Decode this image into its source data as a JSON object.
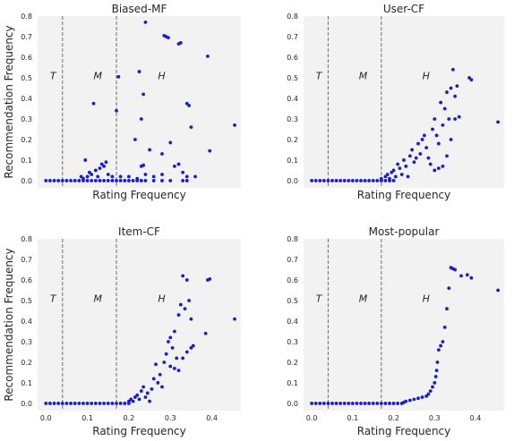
{
  "chart_data": [
    {
      "type": "scatter",
      "title": "Biased-MF",
      "xlabel": "Rating Frequency",
      "ylabel": "Recommendation Frequency",
      "xlim": [
        -0.02,
        0.47
      ],
      "ylim": [
        -0.035,
        0.8
      ],
      "yticks": [
        "0.0",
        "0.1",
        "0.2",
        "0.3",
        "0.4",
        "0.5",
        "0.6",
        "0.7",
        "0.8"
      ],
      "xticks": [],
      "zone_labels": [
        "T",
        "M",
        "H"
      ],
      "zone_lines": [
        0.04,
        0.17
      ],
      "color": "#1a1ad9",
      "points": [
        [
          0.0,
          0.0
        ],
        [
          0.01,
          0.0
        ],
        [
          0.02,
          0.0
        ],
        [
          0.03,
          0.0
        ],
        [
          0.04,
          0.0
        ],
        [
          0.05,
          0.0
        ],
        [
          0.06,
          0.0
        ],
        [
          0.07,
          0.0
        ],
        [
          0.08,
          0.0
        ],
        [
          0.09,
          0.0
        ],
        [
          0.1,
          0.0
        ],
        [
          0.11,
          0.0
        ],
        [
          0.12,
          0.0
        ],
        [
          0.13,
          0.0
        ],
        [
          0.14,
          0.0
        ],
        [
          0.15,
          0.0
        ],
        [
          0.16,
          0.0
        ],
        [
          0.17,
          0.0
        ],
        [
          0.18,
          0.0
        ],
        [
          0.19,
          0.0
        ],
        [
          0.2,
          0.0
        ],
        [
          0.21,
          0.0
        ],
        [
          0.22,
          0.0
        ],
        [
          0.23,
          0.0
        ],
        [
          0.24,
          0.0
        ],
        [
          0.26,
          0.0
        ],
        [
          0.28,
          0.0
        ],
        [
          0.3,
          0.0
        ],
        [
          0.33,
          0.0
        ],
        [
          0.34,
          0.0
        ],
        [
          0.085,
          0.02
        ],
        [
          0.09,
          0.01
        ],
        [
          0.1,
          0.02
        ],
        [
          0.105,
          0.04
        ],
        [
          0.11,
          0.03
        ],
        [
          0.12,
          0.05
        ],
        [
          0.125,
          0.02
        ],
        [
          0.13,
          0.06
        ],
        [
          0.135,
          0.08
        ],
        [
          0.14,
          0.07
        ],
        [
          0.145,
          0.09
        ],
        [
          0.15,
          0.03
        ],
        [
          0.16,
          0.02
        ],
        [
          0.18,
          0.02
        ],
        [
          0.2,
          0.02
        ],
        [
          0.22,
          0.01
        ],
        [
          0.23,
          0.07
        ],
        [
          0.24,
          0.03
        ],
        [
          0.26,
          0.02
        ],
        [
          0.28,
          0.03
        ],
        [
          0.32,
          0.08
        ],
        [
          0.33,
          0.04
        ],
        [
          0.34,
          0.02
        ],
        [
          0.36,
          0.02
        ],
        [
          0.095,
          0.1
        ],
        [
          0.115,
          0.375
        ],
        [
          0.17,
          0.34
        ],
        [
          0.175,
          0.505
        ],
        [
          0.215,
          0.2
        ],
        [
          0.225,
          0.53
        ],
        [
          0.23,
          0.3
        ],
        [
          0.235,
          0.42
        ],
        [
          0.235,
          0.075
        ],
        [
          0.24,
          0.77
        ],
        [
          0.25,
          0.15
        ],
        [
          0.28,
          0.13
        ],
        [
          0.285,
          0.705
        ],
        [
          0.29,
          0.7
        ],
        [
          0.295,
          0.695
        ],
        [
          0.3,
          0.185
        ],
        [
          0.31,
          0.07
        ],
        [
          0.32,
          0.665
        ],
        [
          0.325,
          0.67
        ],
        [
          0.34,
          0.375
        ],
        [
          0.345,
          0.365
        ],
        [
          0.35,
          0.26
        ],
        [
          0.39,
          0.605
        ],
        [
          0.395,
          0.145
        ],
        [
          0.455,
          0.27
        ]
      ]
    },
    {
      "type": "scatter",
      "title": "User-CF",
      "xlabel": "Rating Frequency",
      "ylabel": "",
      "xlim": [
        -0.02,
        0.47
      ],
      "ylim": [
        -0.035,
        0.8
      ],
      "yticks": [
        "0.0",
        "0.1",
        "0.2",
        "0.3",
        "0.4",
        "0.5",
        "0.6",
        "0.7",
        "0.8"
      ],
      "xticks": [],
      "zone_labels": [
        "T",
        "M",
        "H"
      ],
      "zone_lines": [
        0.04,
        0.17
      ],
      "color": "#1a1ad9",
      "points": [
        [
          0.0,
          0.0
        ],
        [
          0.01,
          0.0
        ],
        [
          0.02,
          0.0
        ],
        [
          0.03,
          0.0
        ],
        [
          0.04,
          0.0
        ],
        [
          0.05,
          0.0
        ],
        [
          0.06,
          0.0
        ],
        [
          0.07,
          0.0
        ],
        [
          0.08,
          0.0
        ],
        [
          0.09,
          0.0
        ],
        [
          0.1,
          0.0
        ],
        [
          0.11,
          0.0
        ],
        [
          0.12,
          0.0
        ],
        [
          0.13,
          0.0
        ],
        [
          0.14,
          0.0
        ],
        [
          0.15,
          0.0
        ],
        [
          0.16,
          0.0
        ],
        [
          0.17,
          0.0
        ],
        [
          0.18,
          0.0
        ],
        [
          0.19,
          0.0
        ],
        [
          0.2,
          0.0
        ],
        [
          0.17,
          0.01
        ],
        [
          0.18,
          0.02
        ],
        [
          0.185,
          0.03
        ],
        [
          0.19,
          0.01
        ],
        [
          0.195,
          0.04
        ],
        [
          0.2,
          0.05
        ],
        [
          0.205,
          0.02
        ],
        [
          0.21,
          0.08
        ],
        [
          0.215,
          0.06
        ],
        [
          0.22,
          0.03
        ],
        [
          0.225,
          0.1
        ],
        [
          0.23,
          0.07
        ],
        [
          0.235,
          0.02
        ],
        [
          0.24,
          0.12
        ],
        [
          0.245,
          0.15
        ],
        [
          0.25,
          0.09
        ],
        [
          0.255,
          0.11
        ],
        [
          0.26,
          0.18
        ],
        [
          0.265,
          0.13
        ],
        [
          0.27,
          0.2
        ],
        [
          0.275,
          0.22
        ],
        [
          0.28,
          0.16
        ],
        [
          0.285,
          0.11
        ],
        [
          0.29,
          0.08
        ],
        [
          0.295,
          0.25
        ],
        [
          0.3,
          0.3
        ],
        [
          0.305,
          0.22
        ],
        [
          0.31,
          0.18
        ],
        [
          0.315,
          0.38
        ],
        [
          0.32,
          0.27
        ],
        [
          0.325,
          0.35
        ],
        [
          0.33,
          0.43
        ],
        [
          0.335,
          0.3
        ],
        [
          0.34,
          0.45
        ],
        [
          0.345,
          0.54
        ],
        [
          0.35,
          0.41
        ],
        [
          0.355,
          0.46
        ],
        [
          0.3,
          0.05
        ],
        [
          0.31,
          0.06
        ],
        [
          0.32,
          0.07
        ],
        [
          0.33,
          0.12
        ],
        [
          0.34,
          0.2
        ],
        [
          0.35,
          0.3
        ],
        [
          0.36,
          0.31
        ],
        [
          0.385,
          0.5
        ],
        [
          0.39,
          0.49
        ],
        [
          0.455,
          0.285
        ]
      ]
    },
    {
      "type": "scatter",
      "title": "Item-CF",
      "xlabel": "Rating Frequency",
      "ylabel": "Recommendation Frequency",
      "xlim": [
        -0.02,
        0.47
      ],
      "ylim": [
        -0.035,
        0.8
      ],
      "yticks": [
        "0.0",
        "0.1",
        "0.2",
        "0.3",
        "0.4",
        "0.5",
        "0.6",
        "0.7",
        "0.8"
      ],
      "xticks": [
        "0.0",
        "0.1",
        "0.2",
        "0.3",
        "0.4"
      ],
      "zone_labels": [
        "T",
        "M",
        "H"
      ],
      "zone_lines": [
        0.04,
        0.17
      ],
      "color": "#1a1ad9",
      "points": [
        [
          0.0,
          0.0
        ],
        [
          0.01,
          0.0
        ],
        [
          0.02,
          0.0
        ],
        [
          0.03,
          0.0
        ],
        [
          0.04,
          0.0
        ],
        [
          0.05,
          0.0
        ],
        [
          0.06,
          0.0
        ],
        [
          0.07,
          0.0
        ],
        [
          0.08,
          0.0
        ],
        [
          0.09,
          0.0
        ],
        [
          0.1,
          0.0
        ],
        [
          0.11,
          0.0
        ],
        [
          0.12,
          0.0
        ],
        [
          0.13,
          0.0
        ],
        [
          0.14,
          0.0
        ],
        [
          0.15,
          0.0
        ],
        [
          0.16,
          0.0
        ],
        [
          0.17,
          0.0
        ],
        [
          0.18,
          0.0
        ],
        [
          0.19,
          0.0
        ],
        [
          0.2,
          0.0
        ],
        [
          0.2,
          0.01
        ],
        [
          0.205,
          0.02
        ],
        [
          0.21,
          0.01
        ],
        [
          0.215,
          0.03
        ],
        [
          0.22,
          0.04
        ],
        [
          0.225,
          0.02
        ],
        [
          0.23,
          0.06
        ],
        [
          0.235,
          0.08
        ],
        [
          0.24,
          0.03
        ],
        [
          0.245,
          0.05
        ],
        [
          0.25,
          0.01
        ],
        [
          0.255,
          0.07
        ],
        [
          0.26,
          0.12
        ],
        [
          0.265,
          0.19
        ],
        [
          0.27,
          0.1
        ],
        [
          0.275,
          0.14
        ],
        [
          0.28,
          0.08
        ],
        [
          0.285,
          0.2
        ],
        [
          0.29,
          0.24
        ],
        [
          0.295,
          0.3
        ],
        [
          0.3,
          0.32
        ],
        [
          0.305,
          0.27
        ],
        [
          0.31,
          0.35
        ],
        [
          0.315,
          0.22
        ],
        [
          0.32,
          0.43
        ],
        [
          0.325,
          0.48
        ],
        [
          0.33,
          0.62
        ],
        [
          0.335,
          0.46
        ],
        [
          0.34,
          0.6
        ],
        [
          0.345,
          0.5
        ],
        [
          0.35,
          0.41
        ],
        [
          0.355,
          0.28
        ],
        [
          0.3,
          0.18
        ],
        [
          0.31,
          0.17
        ],
        [
          0.32,
          0.16
        ],
        [
          0.33,
          0.22
        ],
        [
          0.34,
          0.25
        ],
        [
          0.35,
          0.27
        ],
        [
          0.385,
          0.34
        ],
        [
          0.39,
          0.6
        ],
        [
          0.395,
          0.605
        ],
        [
          0.455,
          0.41
        ]
      ]
    },
    {
      "type": "scatter",
      "title": "Most-popular",
      "xlabel": "Rating Frequency",
      "ylabel": "",
      "xlim": [
        -0.02,
        0.47
      ],
      "ylim": [
        -0.035,
        0.8
      ],
      "yticks": [
        "0.0",
        "0.1",
        "0.2",
        "0.3",
        "0.4",
        "0.5",
        "0.6",
        "0.7",
        "0.8"
      ],
      "xticks": [
        "0.0",
        "0.1",
        "0.2",
        "0.3",
        "0.4"
      ],
      "zone_labels": [
        "T",
        "M",
        "H"
      ],
      "zone_lines": [
        0.04,
        0.17
      ],
      "color": "#1a1ad9",
      "points": [
        [
          0.0,
          0.0
        ],
        [
          0.01,
          0.0
        ],
        [
          0.02,
          0.0
        ],
        [
          0.03,
          0.0
        ],
        [
          0.04,
          0.0
        ],
        [
          0.05,
          0.0
        ],
        [
          0.06,
          0.0
        ],
        [
          0.07,
          0.0
        ],
        [
          0.08,
          0.0
        ],
        [
          0.09,
          0.0
        ],
        [
          0.1,
          0.0
        ],
        [
          0.11,
          0.0
        ],
        [
          0.12,
          0.0
        ],
        [
          0.13,
          0.0
        ],
        [
          0.14,
          0.0
        ],
        [
          0.15,
          0.0
        ],
        [
          0.16,
          0.0
        ],
        [
          0.17,
          0.0
        ],
        [
          0.18,
          0.0
        ],
        [
          0.19,
          0.0
        ],
        [
          0.2,
          0.0
        ],
        [
          0.21,
          0.0
        ],
        [
          0.22,
          0.0
        ],
        [
          0.225,
          0.005
        ],
        [
          0.23,
          0.01
        ],
        [
          0.24,
          0.015
        ],
        [
          0.25,
          0.02
        ],
        [
          0.26,
          0.025
        ],
        [
          0.27,
          0.03
        ],
        [
          0.28,
          0.035
        ],
        [
          0.285,
          0.045
        ],
        [
          0.29,
          0.06
        ],
        [
          0.295,
          0.08
        ],
        [
          0.3,
          0.1
        ],
        [
          0.303,
          0.13
        ],
        [
          0.305,
          0.16
        ],
        [
          0.307,
          0.2
        ],
        [
          0.31,
          0.26
        ],
        [
          0.315,
          0.28
        ],
        [
          0.32,
          0.3
        ],
        [
          0.325,
          0.37
        ],
        [
          0.33,
          0.46
        ],
        [
          0.335,
          0.56
        ],
        [
          0.34,
          0.66
        ],
        [
          0.345,
          0.655
        ],
        [
          0.35,
          0.65
        ],
        [
          0.365,
          0.62
        ],
        [
          0.38,
          0.625
        ],
        [
          0.39,
          0.61
        ],
        [
          0.455,
          0.55
        ]
      ]
    }
  ]
}
